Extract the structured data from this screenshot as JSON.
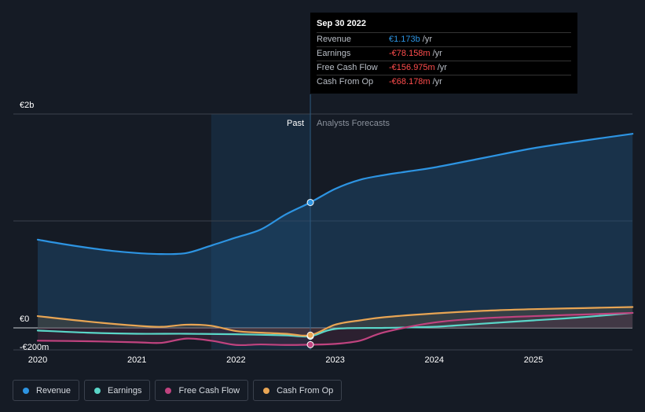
{
  "chart_data": {
    "type": "line",
    "title": "",
    "xlabel": "",
    "ylabel": "",
    "currency": "€",
    "x_ticks": [
      "2020",
      "2021",
      "2022",
      "2023",
      "2024",
      "2025"
    ],
    "y_tick_labels": [
      "€2b",
      "€0",
      "-€200m"
    ],
    "ylim": [
      -200,
      2000
    ],
    "xlim": [
      2020,
      2026.0
    ],
    "divider_x": 2022.75,
    "past_shade_start": 2021.75,
    "regions": {
      "past": "Past",
      "forecast": "Analysts Forecasts"
    },
    "series": [
      {
        "name": "Revenue",
        "color": "#2d94e2",
        "x": [
          2020.0,
          2020.25,
          2020.5,
          2020.75,
          2021.0,
          2021.25,
          2021.5,
          2021.75,
          2022.0,
          2022.25,
          2022.5,
          2022.75,
          2023.0,
          2023.25,
          2023.5,
          2023.75,
          2024.0,
          2024.5,
          2025.0,
          2025.5,
          2026.0
        ],
        "values": [
          825,
          785,
          750,
          720,
          700,
          690,
          700,
          770,
          845,
          920,
          1060,
          1173,
          1300,
          1385,
          1430,
          1465,
          1500,
          1590,
          1680,
          1750,
          1815
        ]
      },
      {
        "name": "Earnings",
        "color": "#5ad6c8",
        "x": [
          2020.0,
          2020.5,
          2021.0,
          2021.5,
          2022.0,
          2022.5,
          2022.75,
          2023.0,
          2023.5,
          2024.0,
          2024.5,
          2025.0,
          2025.5,
          2026.0
        ],
        "values": [
          -25,
          -45,
          -55,
          -55,
          -60,
          -70,
          -78.158,
          -10,
          0,
          10,
          40,
          70,
          100,
          140
        ]
      },
      {
        "name": "Free Cash Flow",
        "color": "#c0437f",
        "x": [
          2020.0,
          2020.5,
          2021.0,
          2021.25,
          2021.5,
          2021.75,
          2022.0,
          2022.25,
          2022.5,
          2022.75,
          2023.0,
          2023.25,
          2023.5,
          2024.0,
          2024.5,
          2025.0,
          2025.5,
          2026.0
        ],
        "values": [
          -120,
          -125,
          -135,
          -140,
          -100,
          -120,
          -160,
          -155,
          -160,
          -156.975,
          -150,
          -120,
          -40,
          50,
          90,
          110,
          125,
          140
        ]
      },
      {
        "name": "Cash From Op",
        "color": "#e8a554",
        "x": [
          2020.0,
          2020.5,
          2021.0,
          2021.25,
          2021.5,
          2021.75,
          2022.0,
          2022.25,
          2022.5,
          2022.75,
          2023.0,
          2023.25,
          2023.5,
          2024.0,
          2024.5,
          2025.0,
          2025.5,
          2026.0
        ],
        "values": [
          110,
          60,
          20,
          10,
          30,
          20,
          -30,
          -45,
          -55,
          -68.178,
          30,
          70,
          100,
          135,
          160,
          175,
          185,
          195
        ]
      }
    ]
  },
  "tooltip": {
    "date": "Sep 30 2022",
    "rows": [
      {
        "label": "Revenue",
        "value": "€1.173b",
        "unit": "/yr",
        "color": "#2d94e2"
      },
      {
        "label": "Earnings",
        "value": "-€78.158m",
        "unit": "/yr",
        "color": "#ff4d4d"
      },
      {
        "label": "Free Cash Flow",
        "value": "-€156.975m",
        "unit": "/yr",
        "color": "#ff4d4d"
      },
      {
        "label": "Cash From Op",
        "value": "-€68.178m",
        "unit": "/yr",
        "color": "#ff4d4d"
      }
    ]
  },
  "legend": [
    {
      "label": "Revenue",
      "color": "#2d94e2"
    },
    {
      "label": "Earnings",
      "color": "#5ad6c8"
    },
    {
      "label": "Free Cash Flow",
      "color": "#c0437f"
    },
    {
      "label": "Cash From Op",
      "color": "#e8a554"
    }
  ]
}
